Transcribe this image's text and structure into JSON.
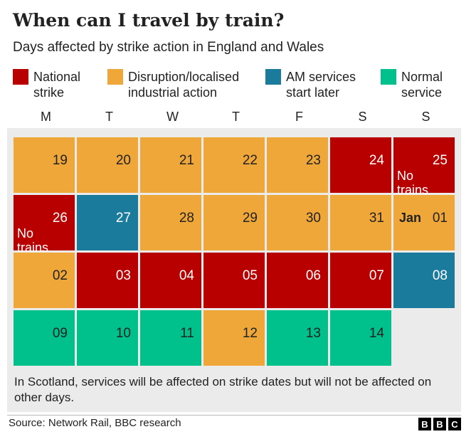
{
  "title": "When can I travel by train?",
  "subtitle": "Days affected by strike action in England and Wales",
  "colors": {
    "national": "#b80000",
    "disruption": "#f0a73a",
    "am": "#1b7b9c",
    "normal": "#00c08c",
    "panel": "#ebebeb"
  },
  "chart_data": {
    "type": "table",
    "legend": [
      {
        "key": "national",
        "lines": [
          "National",
          "strike"
        ]
      },
      {
        "key": "disruption",
        "lines": [
          "Disruption/localised",
          "industrial action"
        ]
      },
      {
        "key": "am",
        "lines": [
          "AM services",
          "start later"
        ]
      },
      {
        "key": "normal",
        "lines": [
          "Normal",
          "service"
        ]
      }
    ],
    "weekdays": [
      "M",
      "T",
      "W",
      "T",
      "F",
      "S",
      "S"
    ],
    "weeks": [
      [
        {
          "day": "19",
          "status": "disruption"
        },
        {
          "day": "20",
          "status": "disruption"
        },
        {
          "day": "21",
          "status": "disruption"
        },
        {
          "day": "22",
          "status": "disruption"
        },
        {
          "day": "23",
          "status": "disruption"
        },
        {
          "day": "24",
          "status": "national"
        },
        {
          "day": "25",
          "status": "national",
          "note": [
            "No",
            "trains"
          ]
        }
      ],
      [
        {
          "day": "26",
          "status": "national",
          "note": [
            "No",
            "trains"
          ]
        },
        {
          "day": "27",
          "status": "am"
        },
        {
          "day": "28",
          "status": "disruption"
        },
        {
          "day": "29",
          "status": "disruption"
        },
        {
          "day": "30",
          "status": "disruption"
        },
        {
          "day": "31",
          "status": "disruption"
        },
        {
          "day": "01",
          "status": "disruption",
          "month": "Jan"
        }
      ],
      [
        {
          "day": "02",
          "status": "disruption"
        },
        {
          "day": "03",
          "status": "national"
        },
        {
          "day": "04",
          "status": "national"
        },
        {
          "day": "05",
          "status": "national"
        },
        {
          "day": "06",
          "status": "national"
        },
        {
          "day": "07",
          "status": "national"
        },
        {
          "day": "08",
          "status": "am"
        }
      ],
      [
        {
          "day": "09",
          "status": "normal"
        },
        {
          "day": "10",
          "status": "normal"
        },
        {
          "day": "11",
          "status": "normal"
        },
        {
          "day": "12",
          "status": "disruption"
        },
        {
          "day": "13",
          "status": "normal"
        },
        {
          "day": "14",
          "status": "normal"
        }
      ]
    ],
    "footnote": "In Scotland, services will be affected on strike dates but will not be affected on other days."
  },
  "source": "Source: Network Rail, BBC research",
  "logo": [
    "B",
    "B",
    "C"
  ]
}
